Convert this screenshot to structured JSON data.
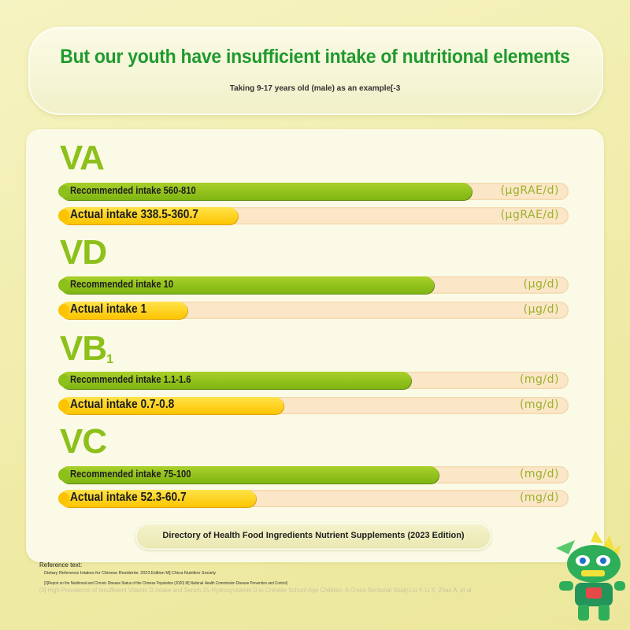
{
  "header": {
    "title": "But our youth have insufficient intake of nutritional elements",
    "subtitle": "Taking 9-17 years old (male) as an example[-3"
  },
  "colors": {
    "title": "#1f9a2f",
    "nutrient_label": "#8cc01a",
    "recommended_bar": "#8cc01a",
    "actual_bar": "#fcc400",
    "track": "#fbe6c8"
  },
  "chart_data": {
    "type": "bar",
    "orientation": "horizontal",
    "groups": [
      {
        "nutrient": "VA",
        "recommended": {
          "label": "Recommended intake 560-810",
          "value": 0.81
        },
        "actual": {
          "label": "Actual intake 338.5-360.7",
          "value": 0.35
        },
        "unit": "(μgRAE/d)"
      },
      {
        "nutrient": "VD",
        "recommended": {
          "label": "Recommended intake 10",
          "value": 0.735
        },
        "actual": {
          "label": "Actual intake 1",
          "value": 0.25
        },
        "unit": "(μg/d)"
      },
      {
        "nutrient": "VB",
        "nutrient_sub": "1",
        "recommended": {
          "label": "Recommended intake 1.1-1.6",
          "value": 0.69
        },
        "actual": {
          "label": "Actual intake 0.7-0.8",
          "value": 0.44
        },
        "unit": "(mg/d)"
      },
      {
        "nutrient": "VC",
        "recommended": {
          "label": "Recommended intake 75-100",
          "value": 0.745
        },
        "actual": {
          "label": "Actual intake 52.3-60.7",
          "value": 0.385
        },
        "unit": "(mg/d)"
      }
    ]
  },
  "source": "Directory of Health Food Ingredients Nutrient Supplements (2023 Edition)",
  "references": {
    "title": "Reference text:",
    "lines": [
      "Dietary Reference Intakes for Chinese Residents: 2023 Edition M] China Nutrition Society",
      "[2]Report on the Nutritional and Chronic Disease Status of the Chinese Population (2020) M] National Health Commission Disease Prevention and Control)",
      "[3] High Prevalence of Insufficient Vitamin D Intake and Serum 25-Hydroxyvitamin D in Chinese School-Age Children: A Cross-Sectional Study.Liu Y, Li X, Zhao A, et al."
    ]
  },
  "mascot_icon": "robot-mascot-icon"
}
